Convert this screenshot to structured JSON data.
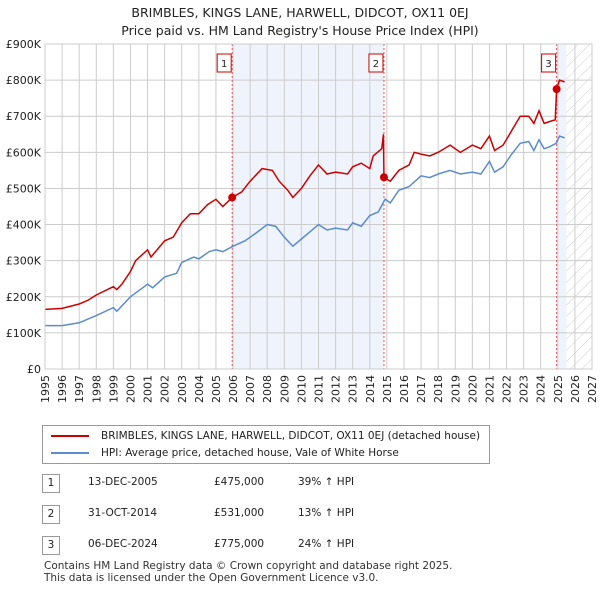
{
  "chart_data": {
    "type": "line",
    "title": "BRIMBLES, KINGS LANE, HARWELL, DIDCOT, OX11 0EJ",
    "subtitle": "Price paid vs. HM Land Registry's House Price Index (HPI)",
    "xlim": [
      1995,
      2027
    ],
    "ylim": [
      0,
      900000
    ],
    "y_ticks": [
      {
        "v": 0,
        "label": "£0"
      },
      {
        "v": 100000,
        "label": "£100K"
      },
      {
        "v": 200000,
        "label": "£200K"
      },
      {
        "v": 300000,
        "label": "£300K"
      },
      {
        "v": 400000,
        "label": "£400K"
      },
      {
        "v": 500000,
        "label": "£500K"
      },
      {
        "v": 600000,
        "label": "£600K"
      },
      {
        "v": 700000,
        "label": "£700K"
      },
      {
        "v": 800000,
        "label": "£800K"
      },
      {
        "v": 900000,
        "label": "£900K"
      }
    ],
    "x_ticks": [
      "1995",
      "1996",
      "1997",
      "1998",
      "1999",
      "2000",
      "2001",
      "2002",
      "2003",
      "2004",
      "2005",
      "2006",
      "2007",
      "2008",
      "2009",
      "2010",
      "2011",
      "2012",
      "2013",
      "2014",
      "2015",
      "2016",
      "2017",
      "2018",
      "2019",
      "2020",
      "2021",
      "2022",
      "2023",
      "2024",
      "2025",
      "2026",
      "2027"
    ],
    "grid": true,
    "shaded_periods": [
      [
        2005.95,
        2014.83
      ],
      [
        2024.93,
        2025.5
      ]
    ],
    "forecast_hatch_from": 2025.5,
    "series": [
      {
        "name": "BRIMBLES, KINGS LANE, HARWELL, DIDCOT, OX11 0EJ (detached house)",
        "color": "#cc0000",
        "x": [
          1995,
          1996,
          1997,
          1997.5,
          1998,
          1999,
          1999.2,
          1999.5,
          2000,
          2000.3,
          2001,
          2001.2,
          2002,
          2002.5,
          2003,
          2003.5,
          2004,
          2004.5,
          2005,
          2005.4,
          2005.95,
          2006.5,
          2007,
          2007.7,
          2008.3,
          2008.7,
          2009.2,
          2009.5,
          2010,
          2010.5,
          2011,
          2011.5,
          2012,
          2012.7,
          2013,
          2013.5,
          2014,
          2014.2,
          2014.7,
          2014.8,
          2014.83,
          2015.2,
          2015.7,
          2016.3,
          2016.6,
          2017,
          2017.5,
          2018,
          2018.7,
          2019.3,
          2020,
          2020.5,
          2021,
          2021.3,
          2021.8,
          2022.3,
          2022.8,
          2023.3,
          2023.6,
          2023.9,
          2024.2,
          2024.5,
          2024.85,
          2024.93,
          2025.1,
          2025.4
        ],
        "y": [
          165,
          168,
          180,
          190,
          205,
          228,
          220,
          235,
          270,
          300,
          330,
          310,
          355,
          365,
          405,
          430,
          430,
          455,
          470,
          450,
          475,
          490,
          520,
          555,
          550,
          520,
          495,
          475,
          500,
          535,
          565,
          540,
          545,
          540,
          560,
          570,
          555,
          590,
          610,
          650,
          531,
          520,
          550,
          565,
          600,
          595,
          590,
          600,
          620,
          600,
          620,
          610,
          645,
          605,
          620,
          660,
          700,
          700,
          680,
          715,
          680,
          685,
          690,
          775,
          800,
          795
        ]
      },
      {
        "name": "HPI: Average price, detached house, Vale of White Horse",
        "color": "#5b8bd0",
        "x": [
          1995,
          1996,
          1997,
          1998,
          1999,
          1999.2,
          2000,
          2001,
          2001.3,
          2002,
          2002.7,
          2003,
          2003.7,
          2004,
          2004.6,
          2005,
          2005.4,
          2006,
          2006.7,
          2007.3,
          2008,
          2008.5,
          2009,
          2009.5,
          2010,
          2010.5,
          2011,
          2011.5,
          2012,
          2012.7,
          2013,
          2013.5,
          2014,
          2014.5,
          2014.9,
          2015.2,
          2015.7,
          2016.3,
          2017,
          2017.5,
          2018,
          2018.7,
          2019.3,
          2020,
          2020.5,
          2021,
          2021.3,
          2021.8,
          2022.3,
          2022.8,
          2023.3,
          2023.6,
          2023.9,
          2024.2,
          2024.5,
          2024.9,
          2025.1,
          2025.4
        ],
        "y": [
          120,
          120,
          128,
          148,
          170,
          160,
          200,
          235,
          225,
          255,
          265,
          295,
          310,
          305,
          325,
          330,
          325,
          340,
          355,
          375,
          400,
          395,
          365,
          340,
          360,
          380,
          400,
          385,
          390,
          385,
          405,
          395,
          425,
          435,
          470,
          460,
          495,
          505,
          535,
          530,
          540,
          550,
          540,
          545,
          540,
          575,
          545,
          560,
          595,
          625,
          630,
          605,
          635,
          610,
          615,
          625,
          645,
          640
        ]
      }
    ],
    "y_unit": "£ thousands",
    "sales": [
      {
        "id": "1",
        "date": "13-DEC-2005",
        "x": 2005.95,
        "price": "£475,000",
        "value": 475,
        "hpi": "39% ↑ HPI"
      },
      {
        "id": "2",
        "date": "31-OCT-2014",
        "x": 2014.83,
        "price": "£531,000",
        "value": 531,
        "hpi": "13% ↑ HPI"
      },
      {
        "id": "3",
        "date": "06-DEC-2024",
        "x": 2024.93,
        "price": "£775,000",
        "value": 775,
        "hpi": "24% ↑ HPI"
      }
    ]
  },
  "footer": {
    "line1": "Contains HM Land Registry data © Crown copyright and database right 2025.",
    "line2": "This data is licensed under the Open Government Licence v3.0."
  }
}
